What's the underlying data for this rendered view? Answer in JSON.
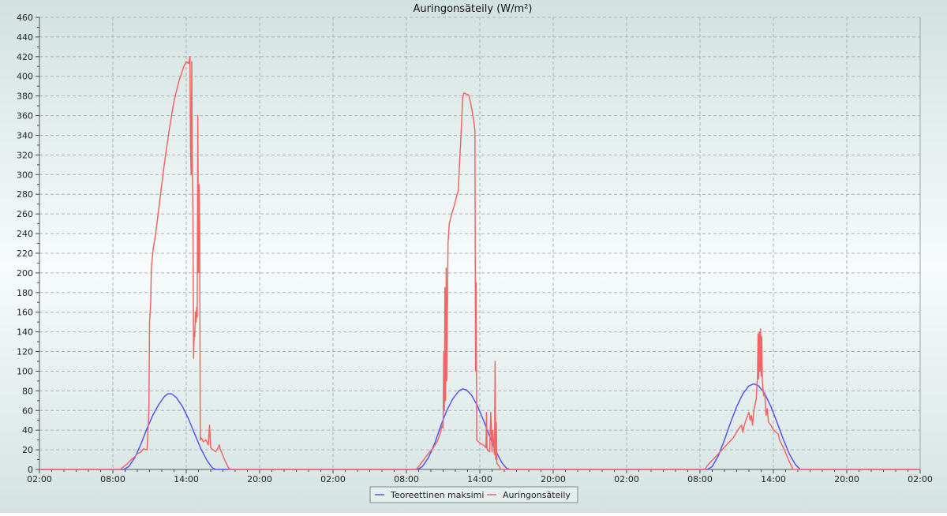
{
  "chart_data": {
    "type": "line",
    "title": "Auringonsäteily (W/m²)",
    "xlabel": "",
    "ylabel": "",
    "ylim": [
      0,
      460
    ],
    "y_ticks": [
      0,
      20,
      40,
      60,
      80,
      100,
      120,
      140,
      160,
      180,
      200,
      220,
      240,
      260,
      280,
      300,
      320,
      340,
      360,
      380,
      400,
      420,
      440,
      460
    ],
    "x_range_hours": [
      0,
      72
    ],
    "x_ticks": [
      {
        "hour": 0,
        "label": "02:00"
      },
      {
        "hour": 6,
        "label": "08:00"
      },
      {
        "hour": 12,
        "label": "14:00"
      },
      {
        "hour": 18,
        "label": "20:00"
      },
      {
        "hour": 24,
        "label": "02:00"
      },
      {
        "hour": 30,
        "label": "08:00"
      },
      {
        "hour": 36,
        "label": "14:00"
      },
      {
        "hour": 42,
        "label": "20:00"
      },
      {
        "hour": 48,
        "label": "02:00"
      },
      {
        "hour": 54,
        "label": "08:00"
      },
      {
        "hour": 60,
        "label": "14:00"
      },
      {
        "hour": 66,
        "label": "20:00"
      },
      {
        "hour": 72,
        "label": "02:00"
      }
    ],
    "grid": true,
    "legend_position": "bottom-center",
    "series": [
      {
        "name": "Teoreettinen maksimi",
        "color": "#5555ee",
        "points": [
          [
            0,
            0
          ],
          [
            6.9,
            0
          ],
          [
            7.3,
            3
          ],
          [
            7.8,
            12
          ],
          [
            8.3,
            26
          ],
          [
            8.8,
            42
          ],
          [
            9.3,
            56
          ],
          [
            9.8,
            67
          ],
          [
            10.2,
            74
          ],
          [
            10.5,
            77
          ],
          [
            10.8,
            77
          ],
          [
            11.2,
            73
          ],
          [
            11.7,
            64
          ],
          [
            12.2,
            51
          ],
          [
            12.7,
            36
          ],
          [
            13.2,
            21
          ],
          [
            13.7,
            9
          ],
          [
            14.1,
            2
          ],
          [
            14.4,
            0
          ],
          [
            30.9,
            0
          ],
          [
            31.3,
            3
          ],
          [
            31.8,
            12
          ],
          [
            32.3,
            26
          ],
          [
            32.8,
            44
          ],
          [
            33.3,
            60
          ],
          [
            33.8,
            72
          ],
          [
            34.3,
            80
          ],
          [
            34.6,
            82
          ],
          [
            34.9,
            81
          ],
          [
            35.3,
            76
          ],
          [
            35.8,
            65
          ],
          [
            36.3,
            50
          ],
          [
            36.8,
            34
          ],
          [
            37.3,
            19
          ],
          [
            37.8,
            7
          ],
          [
            38.2,
            1
          ],
          [
            38.5,
            0
          ],
          [
            54.6,
            0
          ],
          [
            55.0,
            3
          ],
          [
            55.5,
            14
          ],
          [
            56.0,
            30
          ],
          [
            56.5,
            48
          ],
          [
            57.0,
            64
          ],
          [
            57.5,
            77
          ],
          [
            58.0,
            85
          ],
          [
            58.4,
            87
          ],
          [
            58.8,
            85
          ],
          [
            59.3,
            77
          ],
          [
            59.8,
            64
          ],
          [
            60.3,
            48
          ],
          [
            60.8,
            31
          ],
          [
            61.3,
            16
          ],
          [
            61.8,
            5
          ],
          [
            62.2,
            0
          ],
          [
            72,
            0
          ]
        ]
      },
      {
        "name": "Auringonsäteily",
        "color": "#f06666",
        "points": [
          [
            0,
            0
          ],
          [
            6.6,
            0
          ],
          [
            6.9,
            3
          ],
          [
            7.2,
            6
          ],
          [
            7.5,
            10
          ],
          [
            7.8,
            13
          ],
          [
            8.0,
            16
          ],
          [
            8.3,
            18
          ],
          [
            8.5,
            21
          ],
          [
            8.8,
            20
          ],
          [
            8.95,
            60
          ],
          [
            9.0,
            150
          ],
          [
            9.1,
            170
          ],
          [
            9.15,
            205
          ],
          [
            9.3,
            225
          ],
          [
            9.5,
            240
          ],
          [
            9.8,
            270
          ],
          [
            10.2,
            310
          ],
          [
            10.6,
            345
          ],
          [
            11.0,
            375
          ],
          [
            11.4,
            395
          ],
          [
            11.8,
            410
          ],
          [
            12.0,
            415
          ],
          [
            12.2,
            413
          ],
          [
            12.3,
            420
          ],
          [
            12.35,
            330
          ],
          [
            12.4,
            300
          ],
          [
            12.45,
            415
          ],
          [
            12.5,
            300
          ],
          [
            12.55,
            260
          ],
          [
            12.6,
            113
          ],
          [
            12.65,
            140
          ],
          [
            12.7,
            135
          ],
          [
            12.75,
            160
          ],
          [
            12.8,
            150
          ],
          [
            12.85,
            165
          ],
          [
            12.9,
            155
          ],
          [
            12.95,
            360
          ],
          [
            13.0,
            200
          ],
          [
            13.05,
            290
          ],
          [
            13.1,
            250
          ],
          [
            13.15,
            30
          ],
          [
            13.25,
            32
          ],
          [
            13.4,
            28
          ],
          [
            13.6,
            30
          ],
          [
            13.8,
            25
          ],
          [
            13.9,
            45
          ],
          [
            14.0,
            22
          ],
          [
            14.2,
            20
          ],
          [
            14.4,
            18
          ],
          [
            14.6,
            22
          ],
          [
            14.7,
            25
          ],
          [
            14.8,
            20
          ],
          [
            15.0,
            14
          ],
          [
            15.2,
            8
          ],
          [
            15.4,
            3
          ],
          [
            15.55,
            0
          ],
          [
            30.8,
            0
          ],
          [
            31.0,
            3
          ],
          [
            31.3,
            8
          ],
          [
            31.6,
            13
          ],
          [
            31.9,
            18
          ],
          [
            32.2,
            22
          ],
          [
            32.5,
            28
          ],
          [
            32.8,
            38
          ],
          [
            32.9,
            45
          ],
          [
            33.0,
            42
          ],
          [
            33.05,
            120
          ],
          [
            33.1,
            60
          ],
          [
            33.15,
            185
          ],
          [
            33.2,
            70
          ],
          [
            33.25,
            205
          ],
          [
            33.3,
            90
          ],
          [
            33.35,
            160
          ],
          [
            33.4,
            230
          ],
          [
            33.5,
            250
          ],
          [
            33.7,
            260
          ],
          [
            33.9,
            268
          ],
          [
            34.1,
            278
          ],
          [
            34.25,
            284
          ],
          [
            34.3,
            300
          ],
          [
            34.5,
            350
          ],
          [
            34.6,
            378
          ],
          [
            34.7,
            383
          ],
          [
            34.9,
            382
          ],
          [
            35.1,
            381
          ],
          [
            35.3,
            370
          ],
          [
            35.5,
            355
          ],
          [
            35.6,
            345
          ],
          [
            35.65,
            100
          ],
          [
            35.7,
            190
          ],
          [
            35.75,
            30
          ],
          [
            35.9,
            28
          ],
          [
            36.1,
            26
          ],
          [
            36.3,
            25
          ],
          [
            36.5,
            22
          ],
          [
            36.55,
            58
          ],
          [
            36.6,
            20
          ],
          [
            36.8,
            18
          ],
          [
            36.9,
            58
          ],
          [
            37.0,
            18
          ],
          [
            37.05,
            40
          ],
          [
            37.2,
            15
          ],
          [
            37.25,
            110
          ],
          [
            37.3,
            10
          ],
          [
            37.35,
            48
          ],
          [
            37.4,
            6
          ],
          [
            37.6,
            3
          ],
          [
            37.7,
            0
          ],
          [
            54.4,
            0
          ],
          [
            54.6,
            4
          ],
          [
            54.9,
            8
          ],
          [
            55.2,
            12
          ],
          [
            55.5,
            16
          ],
          [
            55.8,
            20
          ],
          [
            56.1,
            24
          ],
          [
            56.4,
            28
          ],
          [
            56.7,
            32
          ],
          [
            57.0,
            38
          ],
          [
            57.2,
            42
          ],
          [
            57.4,
            45
          ],
          [
            57.5,
            38
          ],
          [
            57.6,
            44
          ],
          [
            57.8,
            52
          ],
          [
            58.0,
            58
          ],
          [
            58.1,
            50
          ],
          [
            58.2,
            55
          ],
          [
            58.3,
            45
          ],
          [
            58.4,
            60
          ],
          [
            58.6,
            72
          ],
          [
            58.7,
            95
          ],
          [
            58.75,
            138
          ],
          [
            58.8,
            92
          ],
          [
            58.85,
            140
          ],
          [
            58.9,
            100
          ],
          [
            58.95,
            143
          ],
          [
            59.0,
            95
          ],
          [
            59.05,
            135
          ],
          [
            59.1,
            90
          ],
          [
            59.2,
            75
          ],
          [
            59.3,
            78
          ],
          [
            59.4,
            55
          ],
          [
            59.5,
            62
          ],
          [
            59.6,
            48
          ],
          [
            59.8,
            45
          ],
          [
            60.0,
            40
          ],
          [
            60.2,
            38
          ],
          [
            60.4,
            36
          ],
          [
            60.5,
            30
          ],
          [
            60.7,
            25
          ],
          [
            60.9,
            20
          ],
          [
            61.1,
            14
          ],
          [
            61.3,
            8
          ],
          [
            61.5,
            3
          ],
          [
            61.6,
            0
          ],
          [
            72,
            0
          ]
        ]
      }
    ]
  }
}
